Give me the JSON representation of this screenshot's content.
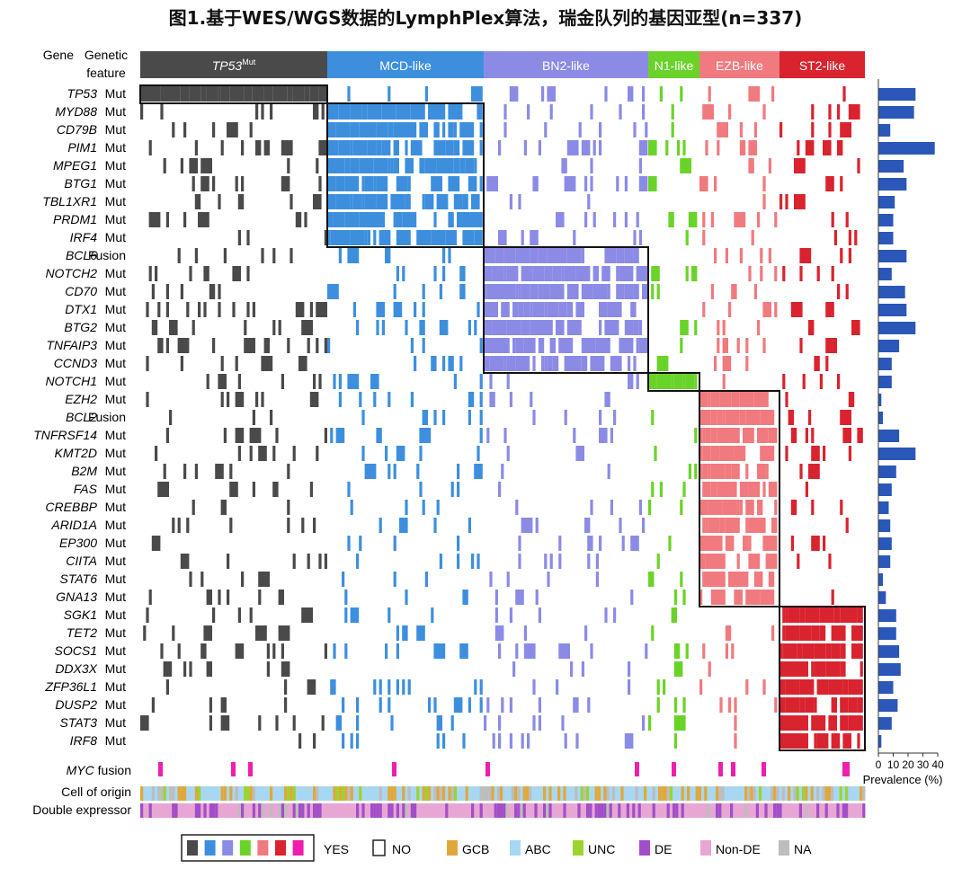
{
  "title": "图1.基于WES/WGS数据的LymphPlex算法，瑞金队列的基因亚型(n=337)",
  "header": {
    "gene_label": "Gene",
    "feature_label_1": "Genetic",
    "feature_label_2": "feature"
  },
  "colors": {
    "TP53": "#4a4a4a",
    "MCD": "#3d8fde",
    "BN2": "#8b8be6",
    "N1": "#6ad32a",
    "EZB": "#f07a7e",
    "ST2": "#d9232e",
    "MYC": "#ee1fae",
    "GCB": "#e0a83a",
    "ABC": "#a8d7f2",
    "UNC": "#9ad52e",
    "DE": "#a24ec8",
    "NonDE": "#e8a6d4",
    "NA": "#bdbdbd",
    "bar": "#2a57b8"
  },
  "chart_data": {
    "type": "heatmap",
    "n": 337,
    "subtypes": [
      {
        "label": "TP53",
        "sup": "Mut",
        "key": "TP53"
      },
      {
        "label": "MCD-like",
        "sup": "",
        "key": "MCD"
      },
      {
        "label": "BN2-like",
        "sup": "",
        "key": "BN2"
      },
      {
        "label": "N1-like",
        "sup": "",
        "key": "N1"
      },
      {
        "label": "EZB-like",
        "sup": "",
        "key": "EZB"
      },
      {
        "label": "ST2-like",
        "sup": "",
        "key": "ST2"
      }
    ],
    "genes": [
      "TP53",
      "MYD88",
      "CD79B",
      "PIM1",
      "MPEG1",
      "BTG1",
      "TBL1XR1",
      "PRDM1",
      "IRF4",
      "BCL6",
      "NOTCH2",
      "CD70",
      "DTX1",
      "BTG2",
      "TNFAIP3",
      "CCND3",
      "NOTCH1",
      "EZH2",
      "BCL2",
      "TNFRSF14",
      "KMT2D",
      "B2M",
      "FAS",
      "CREBBP",
      "ARID1A",
      "EP300",
      "CIITA",
      "STAT6",
      "GNA13",
      "SGK1",
      "TET2",
      "SOCS1",
      "DDX3X",
      "ZFP36L1",
      "DUSP2",
      "STAT3",
      "IRF8"
    ],
    "features": [
      "Mut",
      "Mut",
      "Mut",
      "Mut",
      "Mut",
      "Mut",
      "Mut",
      "Mut",
      "Mut",
      "Fusion",
      "Mut",
      "Mut",
      "Mut",
      "Mut",
      "Mut",
      "Mut",
      "Mut",
      "Mut",
      "Fusion",
      "Mut",
      "Mut",
      "Mut",
      "Mut",
      "Mut",
      "Mut",
      "Mut",
      "Mut",
      "Mut",
      "Mut",
      "Mut",
      "Mut",
      "Mut",
      "Mut",
      "Mut",
      "Mut",
      "Mut",
      "Mut"
    ],
    "prevalence": [
      25,
      24,
      8,
      38,
      17,
      19,
      11,
      10,
      10,
      19,
      9,
      18,
      19,
      25,
      14,
      9,
      9,
      2,
      3,
      14,
      25,
      12,
      9,
      7,
      8,
      9,
      8,
      3,
      5,
      12,
      12,
      14,
      15,
      10,
      13,
      9,
      2
    ],
    "prevalence_axis": {
      "label": "Prevalence (%)",
      "ticks": [
        0,
        10,
        20,
        30,
        40
      ],
      "max": 40
    },
    "extra_rows": {
      "myc": {
        "label": "MYC",
        "suffix": " fusion"
      },
      "coo": {
        "label": "Cell of origin"
      },
      "de": {
        "label": "Double expressor"
      }
    }
  },
  "legend": {
    "yes": "YES",
    "no": "NO",
    "gcb": "GCB",
    "abc": "ABC",
    "unc": "UNC",
    "de": "DE",
    "nonde": "Non-DE",
    "na": "NA"
  }
}
